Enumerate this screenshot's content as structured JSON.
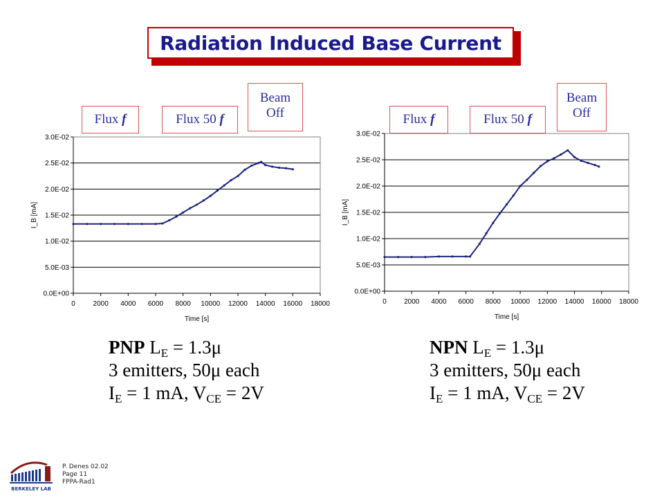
{
  "title": "Radiation Induced Base Current",
  "tags": {
    "flux": "Flux",
    "flux_var": "f",
    "flux50": "Flux 50",
    "beam_off_line1": "Beam",
    "beam_off_line2": "Off"
  },
  "chart_data": [
    {
      "type": "line",
      "xlabel": "Time [s]",
      "ylabel": "I_B [mA]",
      "xlim": [
        0,
        18000
      ],
      "ylim": [
        0,
        0.03
      ],
      "xticks": [
        "0",
        "2000",
        "4000",
        "6000",
        "8000",
        "10000",
        "12000",
        "14000",
        "16000",
        "18000"
      ],
      "yticks": [
        "0.0E+00",
        "5.0E-03",
        "1.0E-02",
        "1.5E-02",
        "2.0E-02",
        "2.5E-02",
        "3.0E-02"
      ],
      "grid": "horizontal",
      "series": [
        {
          "color": "#1a237e",
          "x": [
            0,
            1000,
            2000,
            3000,
            4000,
            5000,
            6000,
            6500,
            7000,
            7500,
            8000,
            8500,
            9000,
            9500,
            10000,
            10500,
            11000,
            11500,
            12000,
            12500,
            13000,
            13500,
            13700,
            14000,
            14500,
            15000,
            15500,
            16000
          ],
          "y": [
            0.0133,
            0.0133,
            0.0133,
            0.0133,
            0.0133,
            0.0133,
            0.0133,
            0.0134,
            0.014,
            0.0147,
            0.0155,
            0.0163,
            0.017,
            0.0178,
            0.0187,
            0.0197,
            0.0207,
            0.0217,
            0.0225,
            0.0237,
            0.0245,
            0.025,
            0.0252,
            0.0246,
            0.0243,
            0.0241,
            0.024,
            0.0238
          ]
        }
      ]
    },
    {
      "type": "line",
      "xlabel": "Time [s]",
      "ylabel": "I_B [mA]",
      "xlim": [
        0,
        18000
      ],
      "ylim": [
        0,
        0.03
      ],
      "xticks": [
        "0",
        "2000",
        "4000",
        "6000",
        "8000",
        "10000",
        "12000",
        "14000",
        "16000",
        "18000"
      ],
      "yticks": [
        "0.0E+00",
        "5.0E-03",
        "1.0E-02",
        "1.5E-02",
        "2.0E-02",
        "2.5E-02",
        "3.0E-02"
      ],
      "grid": "horizontal",
      "series": [
        {
          "color": "#1a237e",
          "x": [
            0,
            1000,
            2000,
            3000,
            4000,
            5000,
            6000,
            6300,
            7000,
            7500,
            8000,
            8500,
            9000,
            9500,
            10000,
            10500,
            11000,
            11500,
            12000,
            12500,
            13000,
            13500,
            14000,
            14500,
            15000,
            15500,
            15800
          ],
          "y": [
            0.0065,
            0.0065,
            0.0065,
            0.0065,
            0.0066,
            0.0066,
            0.0066,
            0.0066,
            0.009,
            0.011,
            0.013,
            0.0148,
            0.0165,
            0.0182,
            0.02,
            0.0212,
            0.0225,
            0.0238,
            0.0247,
            0.0253,
            0.026,
            0.0268,
            0.0255,
            0.0248,
            0.0244,
            0.024,
            0.0237
          ]
        }
      ]
    }
  ],
  "specs": {
    "left": {
      "type_bold": "PNP",
      "le_label": "L",
      "le_sub": "E",
      "le_value": " = 1.3μ",
      "line2": "3 emitters, 50μ each",
      "ie_label": "I",
      "ie_sub": "E",
      "ie_mid": " = 1 mA, V",
      "vce_sub": "CE",
      "vce_value": " = 2V"
    },
    "right": {
      "type_bold": "NPN",
      "le_label": "L",
      "le_sub": "E",
      "le_value": " = 1.3μ",
      "line2": "3 emitters, 50μ each",
      "ie_label": "I",
      "ie_sub": "E",
      "ie_mid": " = 1 mA, V",
      "vce_sub": "CE",
      "vce_value": " = 2V"
    }
  },
  "logo": {
    "text": "BERKELEY LAB"
  },
  "footer": {
    "author": "P. Denes 02.02",
    "page": "Page 11",
    "file": "FPPA-Rad1"
  }
}
